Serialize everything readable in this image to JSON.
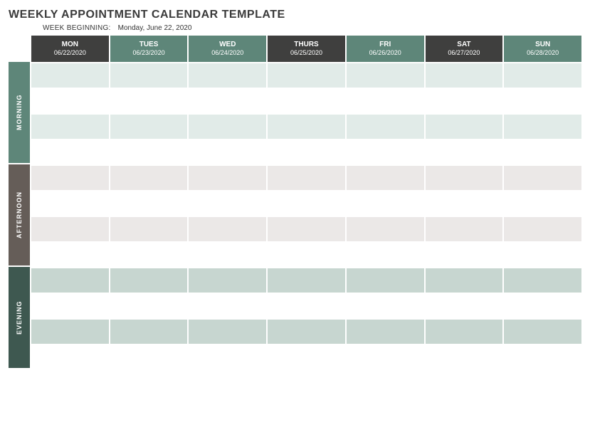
{
  "title": "WEEKLY APPOINTMENT CALENDAR TEMPLATE",
  "week_beginning_label": "WEEK BEGINNING:",
  "week_beginning_value": "Monday, June 22, 2020",
  "colors": {
    "header_dark": "#3f3f3e",
    "header_teal": "#5e8679",
    "morning_label_bg": "#5e8679",
    "afternoon_label_bg": "#655d58",
    "evening_label_bg": "#3e5850",
    "morning_shade": "#e1ebe8",
    "afternoon_shade": "#ebe8e7",
    "evening_shade": "#c7d6d0",
    "white": "#ffffff"
  },
  "days": [
    {
      "name": "MON",
      "date": "06/22/2020",
      "header_color_key": "header_dark"
    },
    {
      "name": "TUES",
      "date": "06/23/2020",
      "header_color_key": "header_teal"
    },
    {
      "name": "WED",
      "date": "06/24/2020",
      "header_color_key": "header_teal"
    },
    {
      "name": "THURS",
      "date": "06/25/2020",
      "header_color_key": "header_dark"
    },
    {
      "name": "FRI",
      "date": "06/26/2020",
      "header_color_key": "header_teal"
    },
    {
      "name": "SAT",
      "date": "06/27/2020",
      "header_color_key": "header_dark"
    },
    {
      "name": "SUN",
      "date": "06/28/2020",
      "header_color_key": "header_teal"
    }
  ],
  "periods": [
    {
      "label": "MORNING",
      "bg_key": "morning_label_bg",
      "row_shade_key": "morning_shade",
      "rows": 4
    },
    {
      "label": "AFTERNOON",
      "bg_key": "afternoon_label_bg",
      "row_shade_key": "afternoon_shade",
      "rows": 4
    },
    {
      "label": "EVENING",
      "bg_key": "evening_label_bg",
      "row_shade_key": "evening_shade",
      "rows": 4
    }
  ]
}
